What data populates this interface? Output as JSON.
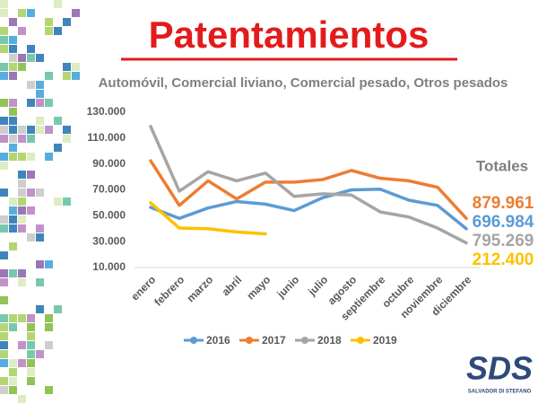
{
  "chart_data": {
    "type": "line",
    "title": "Patentamientos",
    "subtitle": "Automóvil, Comercial liviano, Comercial pesado, Otros pesados",
    "categories": [
      "enero",
      "febrero",
      "marzo",
      "abril",
      "mayo",
      "junio",
      "julio",
      "agosto",
      "septiembre",
      "octubre",
      "noviembre",
      "diciembre"
    ],
    "series": [
      {
        "name": "2016",
        "color": "#5b9bd5",
        "values": [
          56500,
          48000,
          56000,
          61000,
          59000,
          54000,
          64000,
          70000,
          70500,
          62000,
          58000,
          40000
        ],
        "total": 696984,
        "total_label": "696.984"
      },
      {
        "name": "2017",
        "color": "#ed7d31",
        "values": [
          92500,
          58000,
          77000,
          63000,
          76000,
          76000,
          78000,
          85000,
          79000,
          77000,
          72000,
          48000
        ],
        "total": 879961,
        "total_label": "879.961"
      },
      {
        "name": "2018",
        "color": "#a5a5a5",
        "values": [
          119000,
          69000,
          84000,
          77000,
          83000,
          65000,
          67000,
          66000,
          53000,
          49000,
          40500,
          29000
        ],
        "total": 795269,
        "total_label": "795.269"
      },
      {
        "name": "2019",
        "color": "#ffc000",
        "values": [
          60000,
          40500,
          40000,
          37500,
          36000,
          null,
          null,
          null,
          null,
          null,
          null,
          null
        ],
        "total": 212400,
        "total_label": "212.400"
      }
    ],
    "totals_title": "Totales",
    "ylim": [
      10000,
      130000
    ],
    "yticks": [
      {
        "value": 10000,
        "label": "10.000"
      },
      {
        "value": 30000,
        "label": "30.000"
      },
      {
        "value": 50000,
        "label": "50.000"
      },
      {
        "value": 70000,
        "label": "70.000"
      },
      {
        "value": 90000,
        "label": "90.000"
      },
      {
        "value": 110000,
        "label": "110.000"
      },
      {
        "value": 130000,
        "label": "130.000"
      }
    ],
    "legend": "bottom"
  },
  "logo": {
    "text": "SDS",
    "subtext": "SALVADOR DI STEFANO"
  }
}
